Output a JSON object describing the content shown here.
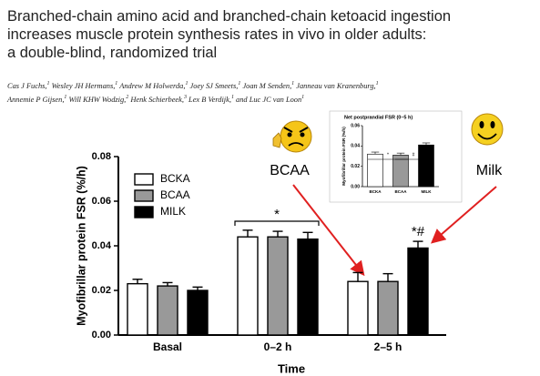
{
  "header": {
    "title": [
      "Branched-chain amino acid and branched-chain ketoacid ingestion",
      "increases muscle protein synthesis rates in vivo in older adults:",
      "a double-blind, randomized trial"
    ],
    "authors": [
      [
        {
          "name": "Cas J Fuchs,",
          "aff": 1
        },
        {
          "name": "Wesley JH Hermans,",
          "aff": 1
        },
        {
          "name": "Andrew M Holwerda,",
          "aff": 1
        },
        {
          "name": "Joey SJ Smeets,",
          "aff": 1
        },
        {
          "name": "Joan M Senden,",
          "aff": 1
        },
        {
          "name": "Janneau van Kranenburg,",
          "aff": 1
        }
      ],
      [
        {
          "name": "Annemie P Gijsen,",
          "aff": 1
        },
        {
          "name": "Will KHW Wodzig,",
          "aff": 2
        },
        {
          "name": "Henk Schierbeek,",
          "aff": 3
        },
        {
          "name": "Lex B Verdijk,",
          "aff": 1
        },
        {
          "name": "and Luc JC van Loon",
          "aff": 1
        }
      ]
    ]
  },
  "callouts": [
    "BCAA",
    "Milk"
  ],
  "chart_data": [
    {
      "type": "bar",
      "categories": [
        "Basal",
        "0–2 h",
        "2–5 h"
      ],
      "series": [
        {
          "name": "BCKA",
          "color": "#ffffff",
          "values": [
            0.023,
            0.044,
            0.024
          ],
          "errors": [
            0.002,
            0.003,
            0.004
          ]
        },
        {
          "name": "BCAA",
          "color": "#999999",
          "values": [
            0.022,
            0.044,
            0.024
          ],
          "errors": [
            0.0015,
            0.0025,
            0.0035
          ]
        },
        {
          "name": "MILK",
          "color": "#000000",
          "values": [
            0.02,
            0.043,
            0.039
          ],
          "errors": [
            0.0015,
            0.003,
            0.003
          ]
        }
      ],
      "ylim": [
        0,
        0.08
      ],
      "yticks": [
        {
          "value": 0,
          "label": "0.00"
        },
        0.02,
        0.04,
        0.06,
        0.08
      ],
      "ylabel": "Myofibrillar protein FSR (%/h)",
      "xlabel": "Time",
      "legend": "upper left",
      "annotations": [
        "*",
        "*#"
      ]
    },
    {
      "type": "bar",
      "title": "Net postprandial FSR (0–5 h)",
      "categories": [
        "BCKA",
        "BCAA",
        "MILK"
      ],
      "values": [
        0.032,
        0.031,
        0.041
      ],
      "errors": [
        0.002,
        0.002,
        0.002
      ],
      "colors": [
        "#ffffff",
        "#999999",
        "#000000"
      ],
      "ylim": [
        0,
        0.06
      ],
      "yticks": [
        {
          "value": 0,
          "label": "0.00"
        },
        0.02,
        0.04,
        0.06
      ],
      "ylabel": "Myofibrillar protein FSR (%/h)",
      "annotations": [
        "*",
        "#"
      ]
    }
  ]
}
